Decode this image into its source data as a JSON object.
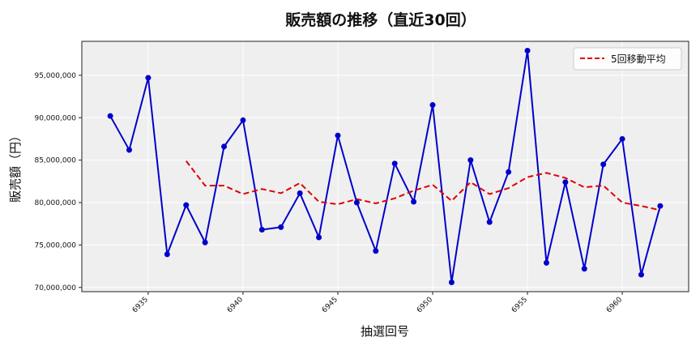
{
  "chart_data": {
    "type": "line",
    "title": "販売額の推移（直近30回）",
    "xlabel": "抽選回号",
    "ylabel": "販売額（円）",
    "x": [
      6933,
      6934,
      6935,
      6936,
      6937,
      6938,
      6939,
      6940,
      6941,
      6942,
      6943,
      6944,
      6945,
      6946,
      6947,
      6948,
      6949,
      6950,
      6951,
      6952,
      6953,
      6954,
      6955,
      6956,
      6957,
      6958,
      6959,
      6960,
      6961,
      6962
    ],
    "xticks": [
      6935,
      6940,
      6945,
      6950,
      6955,
      6960
    ],
    "xtick_labels": [
      "6935",
      "6940",
      "6945",
      "6950",
      "6955",
      "6960"
    ],
    "xlim": [
      6931.5,
      6963.5
    ],
    "ylim": [
      69500000,
      99000000
    ],
    "yticks": [
      70000000,
      75000000,
      80000000,
      85000000,
      90000000,
      95000000
    ],
    "ytick_labels": [
      "70,000,000",
      "75,000,000",
      "80,000,000",
      "85,000,000",
      "90,000,000",
      "95,000,000"
    ],
    "grid": true,
    "legend_position": "top-right",
    "series": [
      {
        "name": "",
        "style": "solid-marker",
        "color": "#0000cc",
        "values": [
          90200000,
          86200000,
          94700000,
          73900000,
          79700000,
          75300000,
          86600000,
          89700000,
          76800000,
          77100000,
          81100000,
          75900000,
          87900000,
          80000000,
          74300000,
          84600000,
          80100000,
          91500000,
          70600000,
          85000000,
          77700000,
          83600000,
          97900000,
          72900000,
          82400000,
          72200000,
          84500000,
          87500000,
          71500000,
          79600000
        ]
      },
      {
        "name": "5回移動平均",
        "style": "dashed",
        "color": "#e00000",
        "values": [
          null,
          null,
          null,
          null,
          84900000,
          82000000,
          82000000,
          81000000,
          81600000,
          81100000,
          82300000,
          80100000,
          79800000,
          80400000,
          79900000,
          80500000,
          81400000,
          82100000,
          80200000,
          82400000,
          81000000,
          81700000,
          83000000,
          83500000,
          82900000,
          81800000,
          82000000,
          80000000,
          79600000,
          79100000
        ]
      }
    ]
  }
}
